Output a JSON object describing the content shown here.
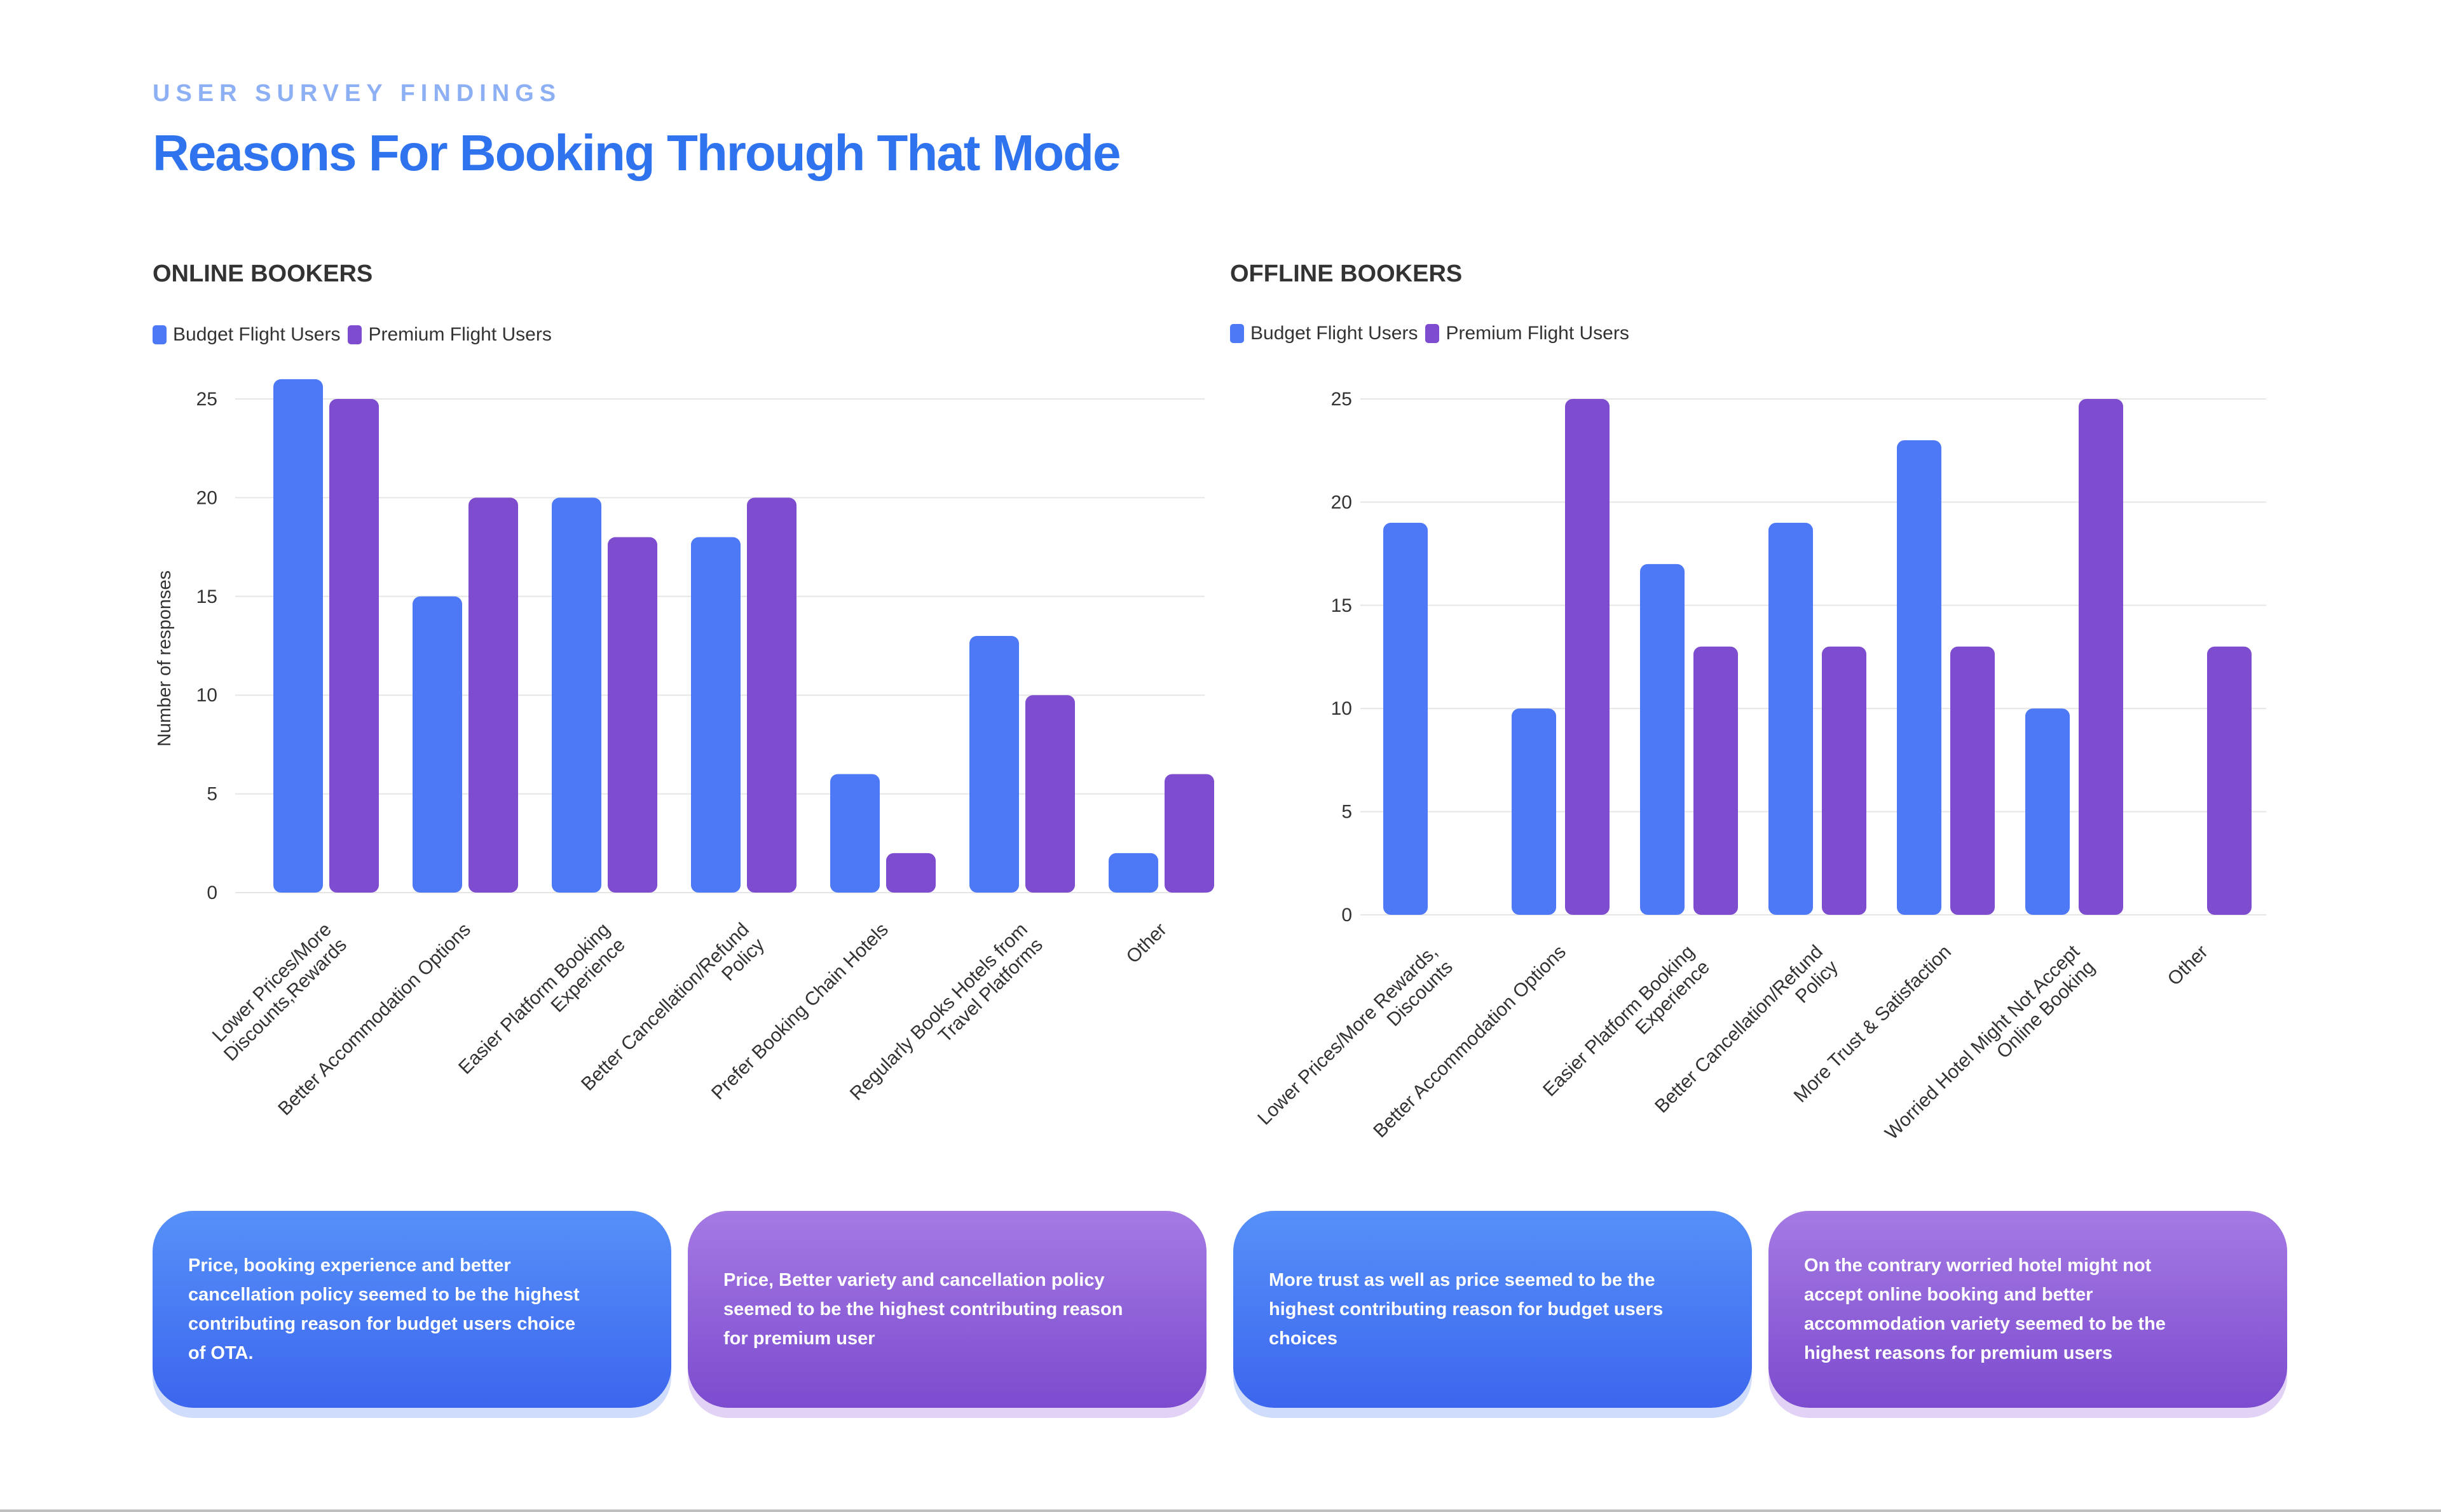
{
  "header": {
    "eyebrow": "USER SURVEY FINDINGS",
    "title": "Reasons For Booking Through That Mode"
  },
  "colors": {
    "budget": "#4d79f6",
    "premium": "#7e4ccf",
    "grid": "#e6e6e6",
    "axis_text": "#333333"
  },
  "online": {
    "section_title": "ONLINE BOOKERS",
    "legend": [
      "Budget Flight Users",
      "Premium Flight Users"
    ]
  },
  "offline": {
    "section_title": "OFFLINE BOOKERS",
    "legend": [
      "Budget Flight Users",
      "Premium Flight Users"
    ]
  },
  "chart_data": [
    {
      "type": "bar",
      "title": "ONLINE BOOKERS",
      "xlabel": "",
      "ylabel": "Number of responses",
      "ylim": [
        0,
        25
      ],
      "yticks": [
        0,
        5,
        10,
        15,
        20,
        25
      ],
      "grid": true,
      "legend": "top-left",
      "categories": [
        [
          "Lower Prices/More",
          "Discounts,Rewards"
        ],
        [
          "Better Accommodation Options"
        ],
        [
          "Easier Platform Booking",
          "Experience"
        ],
        [
          "Better Cancellation/Refund",
          "Policy"
        ],
        [
          "Prefer Booking Chain Hotels"
        ],
        [
          "Regularly Books Hotels from",
          "Travel Platforms"
        ],
        [
          "Other"
        ]
      ],
      "series": [
        {
          "name": "Budget Flight Users",
          "values": [
            26,
            15,
            20,
            18,
            6,
            13,
            2
          ]
        },
        {
          "name": "Premium Flight Users",
          "values": [
            25,
            20,
            18,
            20,
            2,
            10,
            6
          ]
        }
      ]
    },
    {
      "type": "bar",
      "title": "OFFLINE BOOKERS",
      "xlabel": "",
      "ylabel": "",
      "ylim": [
        0,
        25
      ],
      "yticks": [
        0,
        5,
        10,
        15,
        20,
        25
      ],
      "grid": true,
      "legend": "top-left",
      "categories": [
        [
          "Lower Prices/More Rewards,",
          "Discounts"
        ],
        [
          "Better Accommodation Options"
        ],
        [
          "Easier Platform Booking",
          "Experience"
        ],
        [
          "Better Cancellation/Refund",
          "Policy"
        ],
        [
          "More Trust & Satisfaction"
        ],
        [
          "Worried Hotel Might Not Accept",
          "Online Booking"
        ],
        [
          "Other"
        ]
      ],
      "series": [
        {
          "name": "Budget Flight Users",
          "values": [
            19,
            10,
            17,
            19,
            23,
            10,
            0
          ]
        },
        {
          "name": "Premium Flight Users",
          "values": [
            0,
            25,
            13,
            13,
            13,
            25,
            13
          ]
        }
      ]
    }
  ],
  "cards": [
    {
      "text": "Price, booking experience and better cancellation policy seemed to be the highest contributing reason for budget users choice of OTA."
    },
    {
      "text": "Price, Better variety and cancellation policy seemed to be the highest contributing reason for premium user"
    },
    {
      "text": "More trust as well as price  seemed to be the highest contributing reason for budget users choices"
    },
    {
      "text": "On the contrary worried hotel might not accept online booking and better accommodation variety seemed to be the highest reasons for premium users"
    }
  ]
}
